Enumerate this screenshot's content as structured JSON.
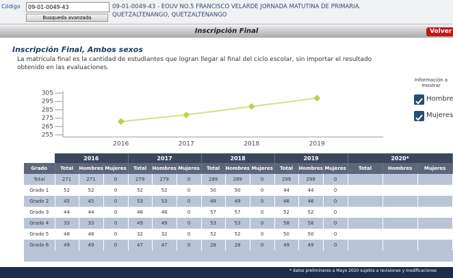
{
  "header": {
    "code_label": "Código",
    "code_value": "09-01-0049-43",
    "search_button": "Busqueda avanzada",
    "school_lines": [
      "09-01-0049-43 - EOUV NO.5 FRANCISCO VELARDE JORNADA MATUTINA DE PRIMARIA.",
      "QUETZALTENANGO, QUETZALTENANGO"
    ]
  },
  "title_bar": {
    "title": "Inscripción Final",
    "back_button": "Volver"
  },
  "heading": "Inscripción Final, Ambos sexos",
  "description_lines": [
    "La matrícula final es la cantidad de estudiantes que logran llegar al final del ciclo escolar, sin importar el resultado",
    "obtenido en las evaluaciones."
  ],
  "chart": {
    "type": "line",
    "categories": [
      "2016",
      "2017",
      "2018",
      "2019"
    ],
    "series": [
      {
        "color": "#c9e67a",
        "marker_color": "#b5d64a",
        "values": [
          271,
          279,
          289,
          299
        ]
      }
    ],
    "ylim": [
      255,
      305
    ],
    "yticks": [
      255,
      265,
      275,
      285,
      295,
      305
    ]
  },
  "options": {
    "label_lines": [
      "Información a",
      "mostrar"
    ],
    "items": [
      {
        "label": "Hombres",
        "checked": true
      },
      {
        "label": "Mujeres",
        "checked": true
      }
    ]
  },
  "table": {
    "year_headers": [
      "2016",
      "2017",
      "2018",
      "2019",
      "2020*"
    ],
    "column_headers": [
      "Grado",
      "Total",
      "Hombres",
      "Mujeres",
      "Total",
      "Hombres",
      "Mujeres",
      "Total",
      "Hombres",
      "Mujeres",
      "Total",
      "Hombres",
      "Mujeres",
      "Total",
      "Hombres",
      "Mujeres"
    ],
    "rows": [
      [
        "Total",
        271,
        271,
        0,
        279,
        279,
        0,
        289,
        289,
        0,
        299,
        299,
        0
      ],
      [
        "Grado 1",
        52,
        52,
        0,
        52,
        52,
        0,
        50,
        50,
        0,
        44,
        44,
        0
      ],
      [
        "Grado 2",
        45,
        45,
        0,
        53,
        53,
        0,
        49,
        49,
        0,
        46,
        46,
        0
      ],
      [
        "Grado 3",
        44,
        44,
        0,
        46,
        46,
        0,
        57,
        57,
        0,
        52,
        52,
        0
      ],
      [
        "Grado 4",
        33,
        33,
        0,
        49,
        49,
        0,
        53,
        53,
        0,
        58,
        58,
        0
      ],
      [
        "Grado 5",
        48,
        48,
        0,
        32,
        32,
        0,
        52,
        52,
        0,
        50,
        50,
        0
      ],
      [
        "Grado 6",
        49,
        49,
        0,
        47,
        47,
        0,
        28,
        28,
        0,
        49,
        49,
        0
      ]
    ]
  },
  "footnote": "* datos preliminares a Mayo 2020 sujetos a revisiones y modificaciones"
}
